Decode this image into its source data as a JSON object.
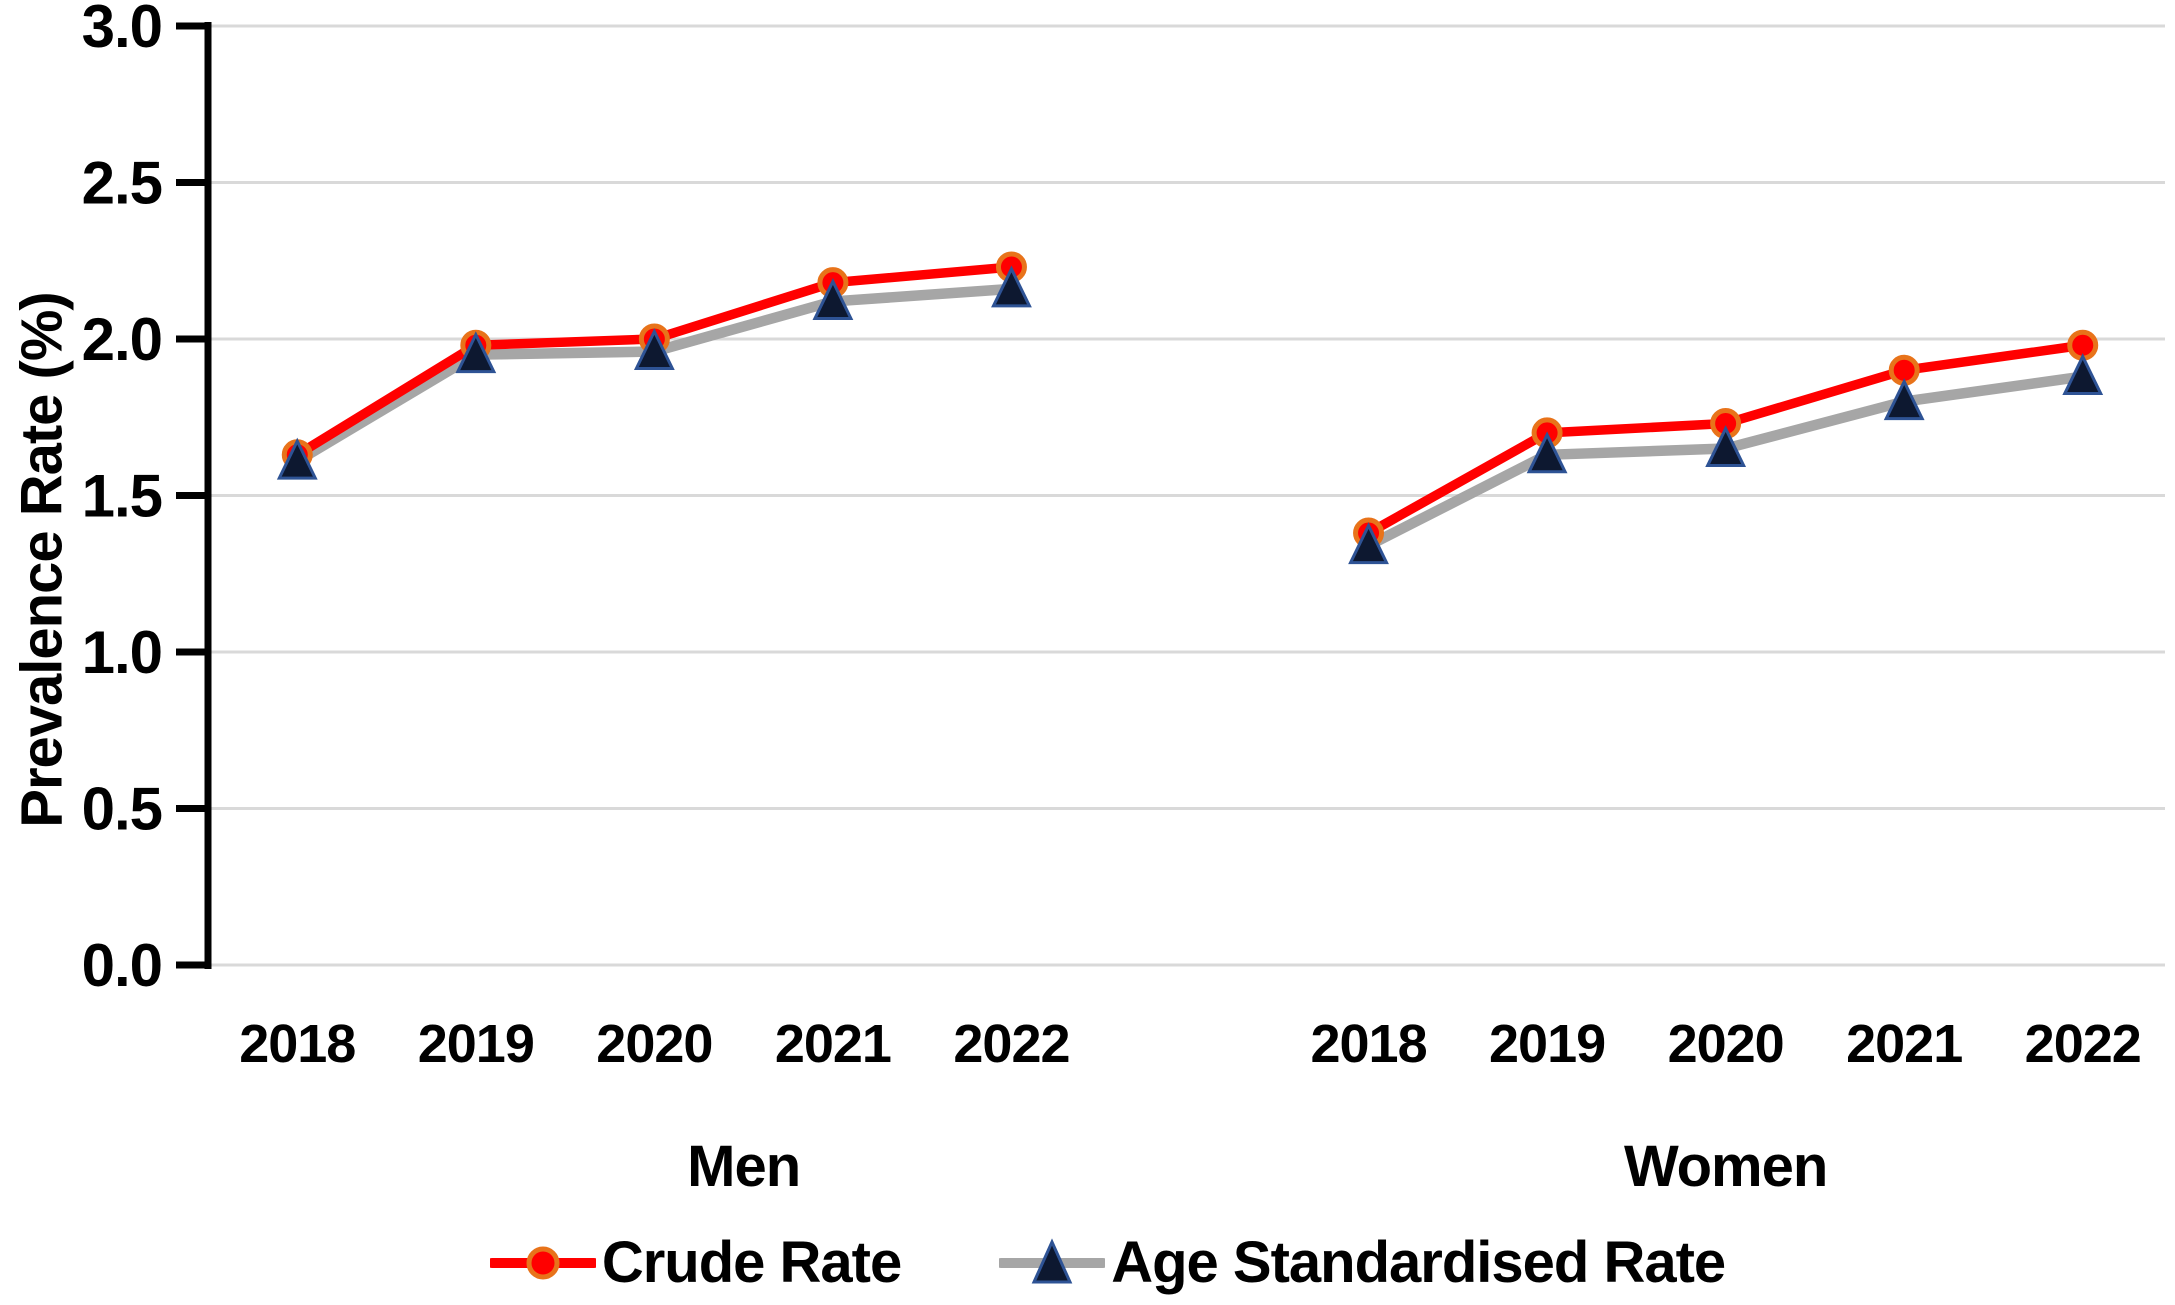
{
  "chart_data": {
    "type": "line",
    "title": "",
    "xlabel": "",
    "ylabel": "Prevalence Rate (%)",
    "ylim": [
      0.0,
      3.0
    ],
    "ytick_step": 0.5,
    "ytick_labels": [
      "0.0",
      "0.5",
      "1.0",
      "1.5",
      "2.0",
      "2.5",
      "3.0"
    ],
    "grid": true,
    "legend_position": "bottom",
    "groups": [
      {
        "label": "Men",
        "categories": [
          "2018",
          "2019",
          "2020",
          "2021",
          "2022"
        ],
        "series": [
          {
            "name": "Crude Rate",
            "values": [
              1.63,
              1.98,
              2.0,
              2.18,
              2.23
            ]
          },
          {
            "name": "Age Standardised Rate",
            "values": [
              1.61,
              1.95,
              1.96,
              2.12,
              2.16
            ]
          }
        ]
      },
      {
        "label": "Women",
        "categories": [
          "2018",
          "2019",
          "2020",
          "2021",
          "2022"
        ],
        "series": [
          {
            "name": "Crude Rate",
            "values": [
              1.38,
              1.7,
              1.73,
              1.9,
              1.98
            ]
          },
          {
            "name": "Age Standardised Rate",
            "values": [
              1.34,
              1.63,
              1.65,
              1.8,
              1.88
            ]
          }
        ]
      }
    ],
    "legend": [
      {
        "label": "Crude Rate",
        "line_color": "#FF0000",
        "marker": "circle",
        "marker_fill": "#FF0000",
        "marker_stroke": "#E8731A"
      },
      {
        "label": "Age Standardised Rate",
        "line_color": "#A6A6A6",
        "marker": "triangle",
        "marker_fill": "#0D1830",
        "marker_stroke": "#2E5395"
      }
    ],
    "colors": {
      "grid": "#D9D9D9",
      "axis": "#000000",
      "text": "#000000",
      "background": "#FFFFFF"
    }
  }
}
